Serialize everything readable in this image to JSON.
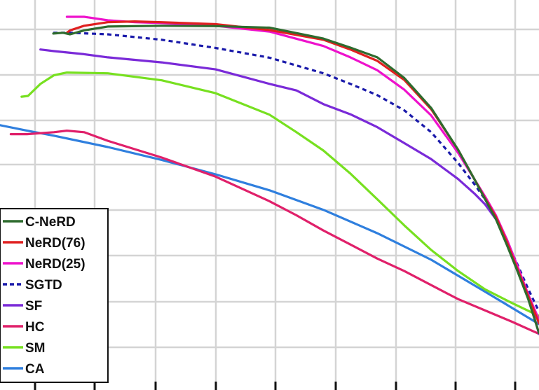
{
  "chart_data": {
    "type": "line",
    "title": "",
    "xlabel": "",
    "ylabel": "",
    "xlim": [
      0,
      100
    ],
    "ylim": [
      0,
      100
    ],
    "grid": true,
    "legend": {
      "placement": "bottom-left"
    },
    "series": [
      {
        "name": "C-NeRD",
        "color": "#2e6b2e",
        "dash": "solid",
        "x": [
          9.9,
          11.7,
          13.0,
          15.6,
          20,
          30,
          40,
          50,
          60,
          65,
          70,
          75,
          80,
          85,
          88,
          90,
          92,
          94,
          96,
          98,
          100
        ],
        "y": [
          91.4,
          91.6,
          91.2,
          92.2,
          93.2,
          93.4,
          93.3,
          92.9,
          90.1,
          87.8,
          85.3,
          80.0,
          72.3,
          61.6,
          54.1,
          48.9,
          43.8,
          37.3,
          30.5,
          23.3,
          14.6
        ]
      },
      {
        "name": "NeRD(76)",
        "color": "#e02020",
        "dash": "solid",
        "x": [
          12.4,
          13.0,
          15.6,
          20,
          25,
          30,
          40,
          50,
          60,
          65,
          70,
          75,
          80,
          85,
          88,
          90,
          92,
          94,
          96,
          98,
          100
        ],
        "y": [
          91.6,
          92.2,
          93.4,
          94.3,
          94.5,
          94.3,
          93.8,
          92.3,
          89.8,
          87.3,
          84.4,
          79.5,
          72.0,
          61.6,
          54.1,
          49.1,
          44.4,
          38.1,
          31.0,
          24.1,
          17.1
        ]
      },
      {
        "name": "NeRD(25)",
        "color": "#ee11cc",
        "dash": "solid",
        "x": [
          12.4,
          15.6,
          20,
          25,
          30,
          40,
          50,
          60,
          65,
          70,
          75,
          80,
          85,
          88,
          90,
          92,
          94,
          96,
          98,
          100
        ],
        "y": [
          95.7,
          95.7,
          94.8,
          94.3,
          94.1,
          93.4,
          91.9,
          88.2,
          85.3,
          82.0,
          77.0,
          70.4,
          60.8,
          54.1,
          49.6,
          44.8,
          38.7,
          31.8,
          24.5,
          18.0
        ]
      },
      {
        "name": "SGTD",
        "color": "#1a1aaa",
        "dash": "6,5",
        "x": [
          9.9,
          13.0,
          20,
          30,
          40,
          50,
          60,
          65,
          70,
          75,
          80,
          85,
          88,
          90,
          92,
          94,
          96,
          98,
          100
        ],
        "y": [
          91.6,
          91.6,
          91.2,
          89.8,
          87.7,
          85.2,
          81.2,
          78.5,
          75.6,
          71.7,
          66.1,
          58.2,
          52.8,
          48.9,
          44.4,
          38.1,
          32.2,
          25.9,
          20.1
        ]
      },
      {
        "name": "SF",
        "color": "#7a2ad8",
        "dash": "solid",
        "x": [
          7.5,
          10,
          15.6,
          20,
          30,
          40,
          50,
          55,
          60,
          65,
          70,
          75,
          80,
          85,
          88,
          90,
          92,
          94,
          96,
          98,
          100
        ],
        "y": [
          87.3,
          86.9,
          86.1,
          85.3,
          84.0,
          82.2,
          78.5,
          76.8,
          73.3,
          70.7,
          67.4,
          63.3,
          59.2,
          54.1,
          50.4,
          47.6,
          43.8,
          38.7,
          31.8,
          24.1,
          14.4
        ]
      },
      {
        "name": "HC",
        "color": "#e0206a",
        "dash": "solid",
        "x": [
          2,
          5,
          10,
          12.4,
          15.6,
          20,
          30,
          40,
          50,
          55,
          60,
          65,
          70,
          75,
          80,
          85,
          90,
          95,
          100
        ],
        "y": [
          65.6,
          65.6,
          66.1,
          66.5,
          66.1,
          63.9,
          59.6,
          54.7,
          48.4,
          44.8,
          40.9,
          37.3,
          33.7,
          30.5,
          26.9,
          23.3,
          20.4,
          17.5,
          14.4
        ]
      },
      {
        "name": "SM",
        "color": "#77e020",
        "dash": "solid",
        "x": [
          4,
          5.2,
          7.5,
          10,
          12.4,
          20,
          30,
          40,
          50,
          55,
          60,
          65,
          70,
          75,
          80,
          85,
          90,
          95,
          100
        ],
        "y": [
          75.2,
          75.4,
          78.5,
          80.7,
          81.4,
          81.2,
          79.4,
          76.1,
          70.6,
          66.1,
          61.4,
          55.5,
          48.9,
          42.2,
          35.9,
          30.5,
          25.8,
          22.3,
          19.0
        ]
      },
      {
        "name": "CA",
        "color": "#2f7fde",
        "dash": "solid",
        "x": [
          0,
          5,
          10,
          20,
          30,
          40,
          50,
          60,
          70,
          80,
          90,
          100
        ],
        "y": [
          67.9,
          66.5,
          65.2,
          62.3,
          59.0,
          55.3,
          51.2,
          46.2,
          40.2,
          33.4,
          25.2,
          16.9
        ]
      }
    ]
  }
}
